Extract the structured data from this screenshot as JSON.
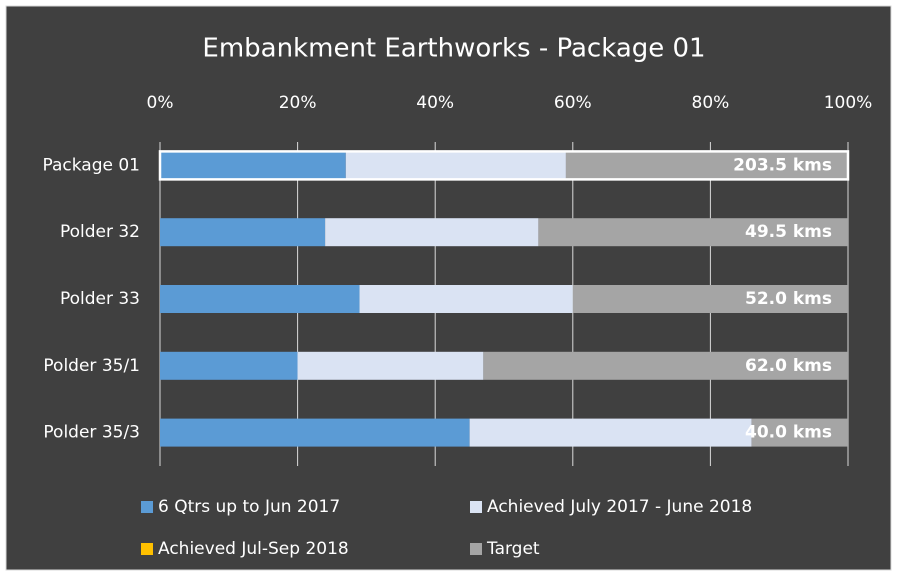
{
  "chart_data": {
    "type": "stacked_bar_horizontal",
    "title": "Embankment Earthworks - Package 01",
    "categories": [
      "Package 01",
      "Polder 32",
      "Polder 33",
      "Polder 35/1",
      "Polder 35/3"
    ],
    "series": [
      {
        "name": "6 Qtrs up to Jun 2017",
        "color": "#5b9bd5",
        "values": [
          27,
          24,
          29,
          20,
          45
        ]
      },
      {
        "name": "Achieved July 2017 - June 2018",
        "color": "#dae3f3",
        "values": [
          32,
          31,
          31,
          27,
          41
        ]
      },
      {
        "name": "Achieved Jul-Sep 2018",
        "color": "#ffc000",
        "values": [
          0,
          0,
          0,
          0,
          0
        ]
      },
      {
        "name": "Target",
        "color": "#a5a5a5",
        "values": [
          41,
          45,
          40,
          53,
          14
        ]
      }
    ],
    "bar_labels": [
      "203.5 kms",
      "49.5 kms",
      "52.0 kms",
      "62.0 kms",
      "40.0 kms"
    ],
    "xlim": [
      0,
      100
    ],
    "xticks": [
      {
        "value": 0,
        "label": "0%"
      },
      {
        "value": 20,
        "label": "20%"
      },
      {
        "value": 40,
        "label": "40%"
      },
      {
        "value": 60,
        "label": "60%"
      },
      {
        "value": 80,
        "label": "80%"
      },
      {
        "value": 100,
        "label": "100%"
      }
    ],
    "grid": true
  }
}
